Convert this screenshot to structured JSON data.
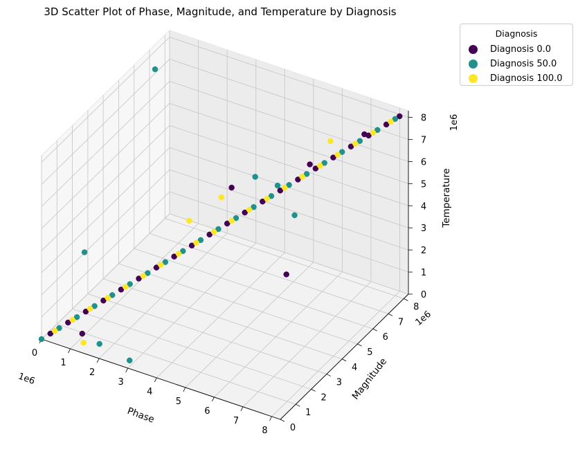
{
  "chart_data": {
    "type": "scatter3d",
    "title": "3D Scatter Plot of Phase, Magnitude, and Temperature by Diagnosis",
    "xlabel": "Phase",
    "ylabel": "Magnitude",
    "zlabel": "Temperature",
    "x_offset_text": "1e6",
    "y_offset_text": "1e6",
    "z_offset_text": "1e6",
    "xticks": [
      "0",
      "1",
      "2",
      "3",
      "4",
      "5",
      "6",
      "7",
      "8"
    ],
    "yticks": [
      "0",
      "1",
      "2",
      "3",
      "4",
      "5",
      "6",
      "7",
      "8"
    ],
    "zticks": [
      "0",
      "1",
      "2",
      "3",
      "4",
      "5",
      "6",
      "7",
      "8"
    ],
    "xlim": [
      0,
      8.3
    ],
    "ylim": [
      0,
      8.3
    ],
    "zlim": [
      0,
      8.3
    ],
    "legend": {
      "title": "Diagnosis",
      "placement": "upper-right-outside",
      "entries": [
        {
          "label": "Diagnosis 0.0",
          "color": "#440154"
        },
        {
          "label": "Diagnosis 50.0",
          "color": "#21918c"
        },
        {
          "label": "Diagnosis 100.0",
          "color": "#fde725"
        }
      ]
    },
    "series": [
      {
        "diagnosis": 0.0,
        "color": "#440154",
        "points": [
          [
            0.2,
            0.2,
            0.2
          ],
          [
            0.6,
            0.6,
            0.6
          ],
          [
            1.0,
            1.0,
            1.0
          ],
          [
            1.4,
            1.4,
            1.4
          ],
          [
            1.8,
            1.8,
            1.8
          ],
          [
            2.2,
            2.2,
            2.2
          ],
          [
            2.6,
            2.6,
            2.6
          ],
          [
            3.0,
            3.0,
            3.0
          ],
          [
            3.4,
            3.4,
            3.4
          ],
          [
            3.8,
            3.8,
            3.8
          ],
          [
            4.2,
            4.2,
            4.2
          ],
          [
            4.6,
            4.6,
            4.6
          ],
          [
            5.0,
            5.0,
            5.0
          ],
          [
            5.4,
            5.4,
            5.4
          ],
          [
            5.8,
            5.8,
            5.8
          ],
          [
            6.2,
            6.2,
            6.2
          ],
          [
            6.6,
            6.6,
            6.6
          ],
          [
            7.0,
            7.0,
            7.0
          ],
          [
            7.4,
            7.4,
            7.4
          ],
          [
            7.8,
            7.8,
            7.8
          ],
          [
            8.1,
            8.1,
            8.1
          ],
          [
            6.9,
            3.0,
            3.9
          ],
          [
            6.0,
            6.2,
            6.3
          ],
          [
            4.3,
            4.3,
            5.8
          ],
          [
            7.2,
            7.5,
            7.3
          ],
          [
            1.2,
            0.4,
            0.5
          ]
        ]
      },
      {
        "diagnosis": 50.0,
        "color": "#21918c",
        "points": [
          [
            0.0,
            0.0,
            0.0
          ],
          [
            0.4,
            0.4,
            0.4
          ],
          [
            0.8,
            0.8,
            0.8
          ],
          [
            1.2,
            1.2,
            1.2
          ],
          [
            1.6,
            1.6,
            1.6
          ],
          [
            2.0,
            2.0,
            2.0
          ],
          [
            2.4,
            2.4,
            2.4
          ],
          [
            2.8,
            2.8,
            2.8
          ],
          [
            3.2,
            3.2,
            3.2
          ],
          [
            3.6,
            3.6,
            3.6
          ],
          [
            4.0,
            4.0,
            4.0
          ],
          [
            4.4,
            4.4,
            4.4
          ],
          [
            4.8,
            4.8,
            4.8
          ],
          [
            5.2,
            5.2,
            5.2
          ],
          [
            5.6,
            5.6,
            5.6
          ],
          [
            6.0,
            6.0,
            6.0
          ],
          [
            6.4,
            6.4,
            6.4
          ],
          [
            6.8,
            6.8,
            6.8
          ],
          [
            7.2,
            7.2,
            7.2
          ],
          [
            7.6,
            7.6,
            7.6
          ],
          [
            8.0,
            8.0,
            8.0
          ],
          [
            0.1,
            2.6,
            2.2
          ],
          [
            0.3,
            6.8,
            7.7
          ],
          [
            1.8,
            0.4,
            0.3
          ],
          [
            2.9,
            0.3,
            0.1
          ],
          [
            5.2,
            5.6,
            5.4
          ],
          [
            4.8,
            4.9,
            6.1
          ],
          [
            5.9,
            5.4,
            4.5
          ]
        ]
      },
      {
        "diagnosis": 100.0,
        "color": "#fde725",
        "points": [
          [
            0.3,
            0.3,
            0.3
          ],
          [
            0.7,
            0.7,
            0.7
          ],
          [
            1.1,
            1.1,
            1.1
          ],
          [
            1.5,
            1.5,
            1.5
          ],
          [
            1.9,
            1.9,
            1.9
          ],
          [
            2.3,
            2.3,
            2.3
          ],
          [
            2.7,
            2.7,
            2.7
          ],
          [
            3.1,
            3.1,
            3.1
          ],
          [
            3.5,
            3.5,
            3.5
          ],
          [
            3.9,
            3.9,
            3.9
          ],
          [
            4.3,
            4.3,
            4.3
          ],
          [
            4.7,
            4.7,
            4.7
          ],
          [
            5.1,
            5.1,
            5.1
          ],
          [
            5.5,
            5.5,
            5.5
          ],
          [
            5.9,
            5.9,
            5.9
          ],
          [
            6.3,
            6.3,
            6.3
          ],
          [
            6.7,
            6.7,
            6.7
          ],
          [
            7.1,
            7.1,
            7.1
          ],
          [
            7.5,
            7.5,
            7.5
          ],
          [
            7.9,
            7.9,
            7.9
          ],
          [
            1.3,
            0.3,
            0.2
          ],
          [
            4.0,
            4.2,
            5.3
          ],
          [
            3.2,
            3.6,
            4.3
          ],
          [
            6.5,
            6.6,
            7.3
          ]
        ]
      }
    ]
  }
}
